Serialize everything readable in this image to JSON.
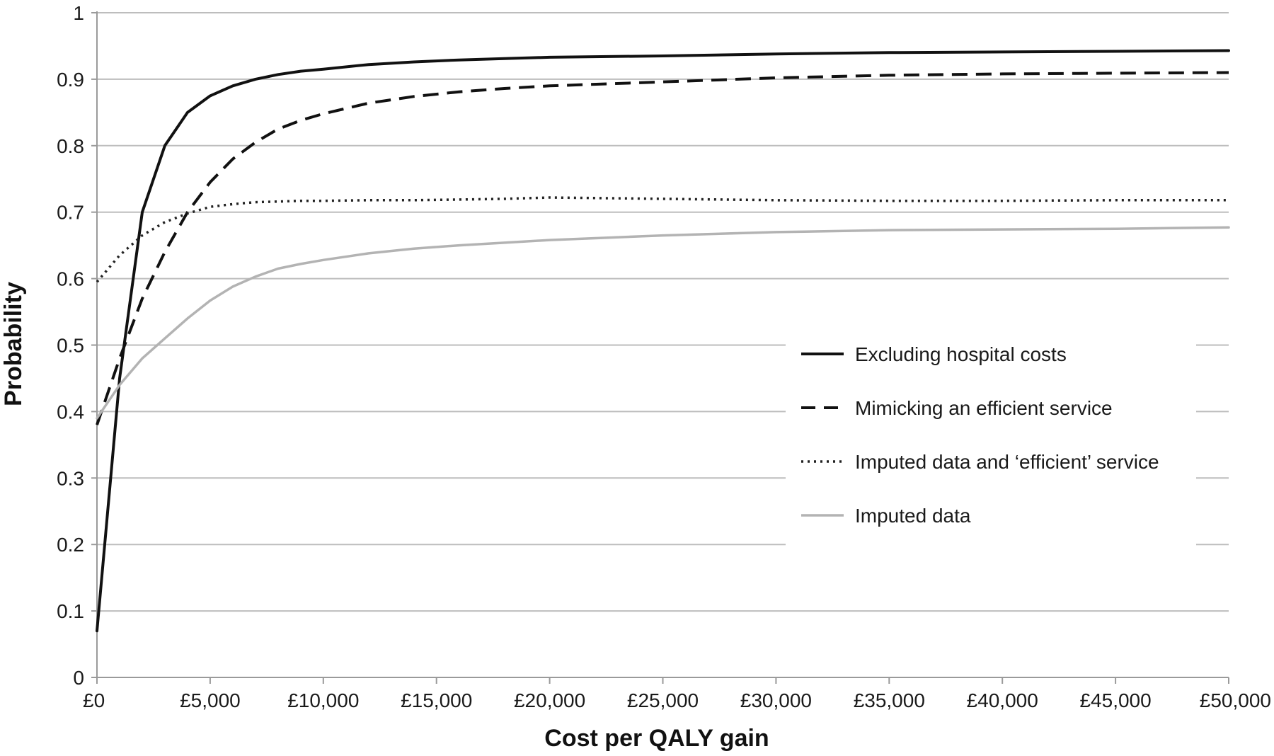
{
  "chart_data": {
    "type": "line",
    "title": "",
    "xlabel": "Cost per QALY gain",
    "ylabel": "Probability",
    "xlim": [
      0,
      50000
    ],
    "ylim": [
      0,
      1
    ],
    "grid": "horizontal",
    "legend_position": "right",
    "x_ticks": [
      {
        "value": 0,
        "label": "£0"
      },
      {
        "value": 5000,
        "label": "£5,000"
      },
      {
        "value": 10000,
        "label": "£10,000"
      },
      {
        "value": 15000,
        "label": "£15,000"
      },
      {
        "value": 20000,
        "label": "£20,000"
      },
      {
        "value": 25000,
        "label": "£25,000"
      },
      {
        "value": 30000,
        "label": "£30,000"
      },
      {
        "value": 35000,
        "label": "£35,000"
      },
      {
        "value": 40000,
        "label": "£40,000"
      },
      {
        "value": 45000,
        "label": "£45,000"
      },
      {
        "value": 50000,
        "label": "£50,000"
      }
    ],
    "y_ticks": [
      {
        "value": 0,
        "label": "0"
      },
      {
        "value": 0.1,
        "label": "0.1"
      },
      {
        "value": 0.2,
        "label": "0.2"
      },
      {
        "value": 0.3,
        "label": "0.3"
      },
      {
        "value": 0.4,
        "label": "0.4"
      },
      {
        "value": 0.5,
        "label": "0.5"
      },
      {
        "value": 0.6,
        "label": "0.6"
      },
      {
        "value": 0.7,
        "label": "0.7"
      },
      {
        "value": 0.8,
        "label": "0.8"
      },
      {
        "value": 0.9,
        "label": "0.9"
      },
      {
        "value": 1,
        "label": "1"
      }
    ],
    "x": [
      0,
      1000,
      2000,
      3000,
      4000,
      5000,
      6000,
      7000,
      8000,
      9000,
      10000,
      12000,
      14000,
      16000,
      18000,
      20000,
      25000,
      30000,
      35000,
      40000,
      45000,
      50000
    ],
    "series": [
      {
        "name": "Excluding hospital costs",
        "color": "#111111",
        "style": "solid",
        "values": [
          0.07,
          0.45,
          0.7,
          0.8,
          0.85,
          0.875,
          0.89,
          0.9,
          0.907,
          0.912,
          0.915,
          0.922,
          0.926,
          0.929,
          0.931,
          0.933,
          0.935,
          0.938,
          0.94,
          0.941,
          0.942,
          0.943
        ]
      },
      {
        "name": "Mimicking an efficient service",
        "color": "#111111",
        "style": "dashed",
        "values": [
          0.38,
          0.48,
          0.57,
          0.64,
          0.7,
          0.745,
          0.78,
          0.805,
          0.825,
          0.838,
          0.848,
          0.864,
          0.874,
          0.881,
          0.886,
          0.89,
          0.896,
          0.902,
          0.906,
          0.908,
          0.909,
          0.91
        ]
      },
      {
        "name": "Imputed data and ‘efficient’ service",
        "color": "#222222",
        "style": "dotted",
        "values": [
          0.595,
          0.635,
          0.665,
          0.685,
          0.698,
          0.708,
          0.712,
          0.715,
          0.716,
          0.717,
          0.717,
          0.718,
          0.718,
          0.719,
          0.72,
          0.722,
          0.72,
          0.718,
          0.717,
          0.717,
          0.718,
          0.718
        ]
      },
      {
        "name": "Imputed data",
        "color": "#b3b3b3",
        "style": "solid",
        "values": [
          0.39,
          0.44,
          0.48,
          0.51,
          0.54,
          0.567,
          0.588,
          0.603,
          0.615,
          0.622,
          0.628,
          0.638,
          0.645,
          0.65,
          0.654,
          0.658,
          0.665,
          0.67,
          0.673,
          0.674,
          0.675,
          0.677
        ]
      }
    ]
  }
}
